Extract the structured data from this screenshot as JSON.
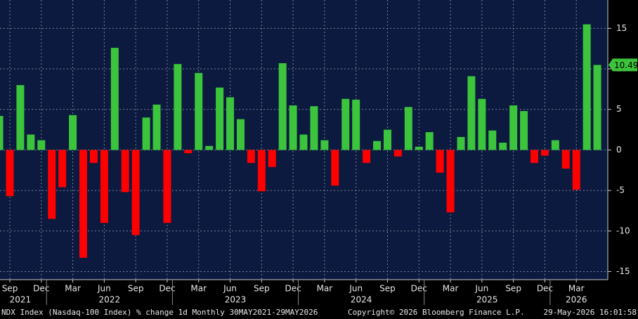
{
  "chart_data": {
    "type": "bar",
    "title": "NDX Index (Nasdaq-100 Index) % change 1d Monthly 30MAY2021-29MAY2026",
    "copyright": "Copyright© 2026 Bloomberg Finance L.P.",
    "timestamp": "29-May-2026 16:01:58",
    "categories": [
      null,
      "Sep",
      null,
      null,
      "Dec",
      null,
      null,
      "Mar",
      null,
      null,
      "Jun",
      null,
      null,
      "Sep",
      null,
      null,
      "Dec",
      null,
      null,
      "Mar",
      null,
      null,
      "Jun",
      null,
      null,
      "Sep",
      null,
      null,
      "Dec",
      null,
      null,
      "Mar",
      null,
      null,
      "Jun",
      null,
      null,
      "Sep",
      null,
      null,
      "Dec",
      null,
      null,
      "Mar",
      null,
      null,
      "Jun",
      null,
      null,
      "Sep",
      null,
      null,
      "Dec",
      null,
      null,
      "Mar",
      null,
      null
    ],
    "years": [
      "2021",
      "2021",
      "2021",
      "2021",
      "2021",
      "2022",
      "2022",
      "2022",
      "2022",
      "2022",
      "2022",
      "2022",
      "2022",
      "2022",
      "2022",
      "2022",
      "2022",
      "2023",
      "2023",
      "2023",
      "2023",
      "2023",
      "2023",
      "2023",
      "2023",
      "2023",
      "2023",
      "2023",
      "2023",
      "2024",
      "2024",
      "2024",
      "2024",
      "2024",
      "2024",
      "2024",
      "2024",
      "2024",
      "2024",
      "2024",
      "2024",
      "2025",
      "2025",
      "2025",
      "2025",
      "2025",
      "2025",
      "2025",
      "2025",
      "2025",
      "2025",
      "2025",
      "2025",
      "2026",
      "2026",
      "2026",
      "2026",
      "2026"
    ],
    "series": [
      {
        "name": "NDX Index",
        "values": [
          4.2,
          -5.7,
          8.0,
          1.9,
          1.2,
          -8.5,
          -4.6,
          4.3,
          -13.3,
          -1.6,
          -9.0,
          12.6,
          -5.2,
          -10.5,
          4.0,
          5.6,
          -9.0,
          10.6,
          -0.4,
          9.5,
          0.5,
          7.7,
          6.5,
          3.8,
          -1.6,
          -5.1,
          -2.1,
          10.7,
          5.5,
          1.9,
          5.4,
          1.2,
          -4.4,
          6.3,
          6.2,
          -1.6,
          1.1,
          2.5,
          -0.8,
          5.3,
          0.4,
          2.2,
          -2.8,
          -7.7,
          1.6,
          9.1,
          6.3,
          2.4,
          0.9,
          5.5,
          4.8,
          -1.6,
          -0.7,
          1.2,
          -2.3,
          -4.9,
          15.5,
          10.49
        ]
      }
    ],
    "positive_color": "#3cc43c",
    "negative_color": "#ff0000",
    "ylim": [
      -16,
      18.5
    ],
    "yticks": [
      -15,
      -10,
      -5,
      0,
      5,
      10,
      15
    ],
    "grid": true,
    "y_axis_side": "right"
  }
}
